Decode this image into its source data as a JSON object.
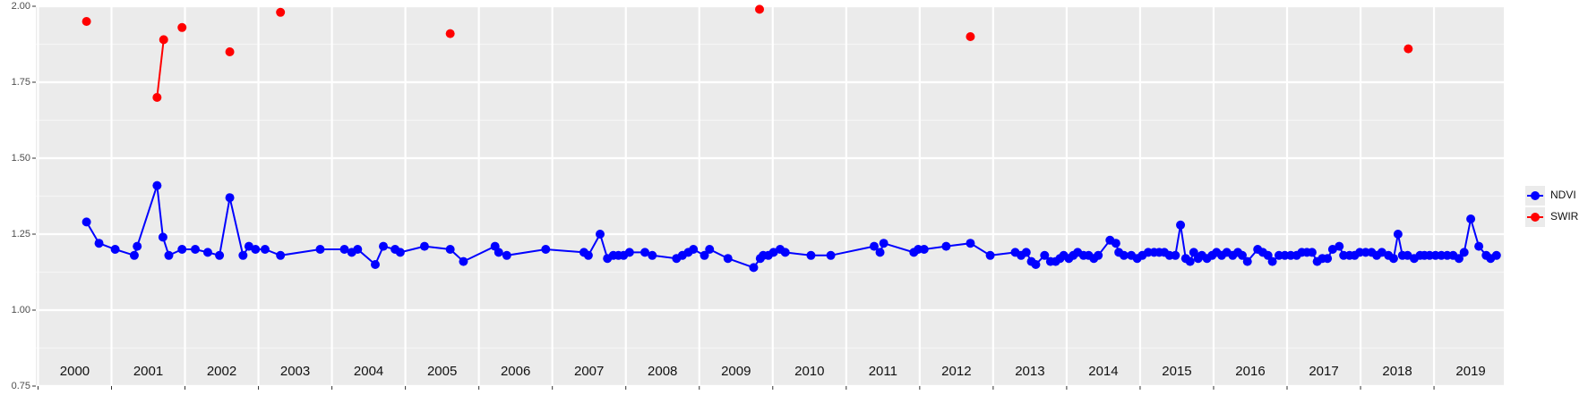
{
  "chart_data": {
    "type": "line",
    "xlim": [
      1999.97,
      2019.95
    ],
    "xticks": [
      2000,
      2001,
      2002,
      2003,
      2004,
      2005,
      2006,
      2007,
      2008,
      2009,
      2010,
      2011,
      2012,
      2013,
      2014,
      2015,
      2016,
      2017,
      2018,
      2019
    ],
    "ylim": [
      0.75,
      2.0
    ],
    "yticks": [
      {
        "value": 0.75,
        "label": "0.75"
      },
      {
        "value": 1.0,
        "label": "1.00"
      },
      {
        "value": 1.25,
        "label": "1.25"
      },
      {
        "value": 1.5,
        "label": "1.50"
      },
      {
        "value": 1.75,
        "label": "1.75"
      },
      {
        "value": 2.0,
        "label": "2.00"
      }
    ],
    "grid": true,
    "legend": "right",
    "annotations": [
      "2000",
      "2001",
      "2002",
      "2003",
      "2004",
      "2005",
      "2006",
      "2007",
      "2008",
      "2009",
      "2010",
      "2011",
      "2012",
      "2013",
      "2014",
      "2015",
      "2016",
      "2017",
      "2018",
      "2019"
    ],
    "series": [
      {
        "name": "NDVI",
        "color": "#0000ff",
        "x": [
          2000.66,
          2000.83,
          2001.05,
          2001.31,
          2001.35,
          2001.62,
          2001.7,
          2001.78,
          2001.96,
          2002.14,
          2002.31,
          2002.47,
          2002.61,
          2002.79,
          2002.87,
          2002.96,
          2003.09,
          2003.3,
          2003.84,
          2004.17,
          2004.27,
          2004.35,
          2004.59,
          2004.7,
          2004.86,
          2004.93,
          2005.26,
          2005.61,
          2005.79,
          2006.22,
          2006.27,
          2006.38,
          2006.91,
          2007.43,
          2007.49,
          2007.65,
          2007.75,
          2007.83,
          2007.9,
          2007.97,
          2008.05,
          2008.26,
          2008.36,
          2008.69,
          2008.77,
          2008.85,
          2008.92,
          2009.07,
          2009.14,
          2009.39,
          2009.74,
          2009.83,
          2009.87,
          2009.94,
          2010.01,
          2010.1,
          2010.17,
          2010.52,
          2010.79,
          2011.38,
          2011.46,
          2011.51,
          2011.92,
          2011.98,
          2012.06,
          2012.36,
          2012.69,
          2012.96,
          2013.3,
          2013.38,
          2013.45,
          2013.52,
          2013.58,
          2013.7,
          2013.78,
          2013.85,
          2013.91,
          2013.96,
          2014.03,
          2014.09,
          2014.15,
          2014.23,
          2014.3,
          2014.37,
          2014.43,
          2014.59,
          2014.67,
          2014.71,
          2014.78,
          2014.88,
          2014.96,
          2015.03,
          2015.11,
          2015.19,
          2015.26,
          2015.33,
          2015.4,
          2015.48,
          2015.55,
          2015.62,
          2015.68,
          2015.73,
          2015.79,
          2015.84,
          2015.91,
          2015.98,
          2016.04,
          2016.11,
          2016.18,
          2016.26,
          2016.33,
          2016.39,
          2016.46,
          2016.6,
          2016.67,
          2016.74,
          2016.8,
          2016.89,
          2016.97,
          2017.05,
          2017.13,
          2017.2,
          2017.27,
          2017.34,
          2017.41,
          2017.48,
          2017.55,
          2017.62,
          2017.71,
          2017.77,
          2017.85,
          2017.92,
          2017.99,
          2018.07,
          2018.15,
          2018.22,
          2018.29,
          2018.38,
          2018.45,
          2018.51,
          2018.57,
          2018.64,
          2018.73,
          2018.81,
          2018.87,
          2018.94,
          2019.02,
          2019.1,
          2019.18,
          2019.26,
          2019.34,
          2019.41,
          2019.5,
          2019.61,
          2019.71,
          2019.77,
          2019.85
        ],
        "values": [
          1.29,
          1.22,
          1.2,
          1.18,
          1.21,
          1.41,
          1.24,
          1.18,
          1.2,
          1.2,
          1.19,
          1.18,
          1.37,
          1.18,
          1.21,
          1.2,
          1.2,
          1.18,
          1.2,
          1.2,
          1.19,
          1.2,
          1.15,
          1.21,
          1.2,
          1.19,
          1.21,
          1.2,
          1.16,
          1.21,
          1.19,
          1.18,
          1.2,
          1.19,
          1.18,
          1.25,
          1.17,
          1.18,
          1.18,
          1.18,
          1.19,
          1.19,
          1.18,
          1.17,
          1.18,
          1.19,
          1.2,
          1.18,
          1.2,
          1.17,
          1.14,
          1.17,
          1.18,
          1.18,
          1.19,
          1.2,
          1.19,
          1.18,
          1.18,
          1.21,
          1.19,
          1.22,
          1.19,
          1.2,
          1.2,
          1.21,
          1.22,
          1.18,
          1.19,
          1.18,
          1.19,
          1.16,
          1.15,
          1.18,
          1.16,
          1.16,
          1.17,
          1.18,
          1.17,
          1.18,
          1.19,
          1.18,
          1.18,
          1.17,
          1.18,
          1.23,
          1.22,
          1.19,
          1.18,
          1.18,
          1.17,
          1.18,
          1.19,
          1.19,
          1.19,
          1.19,
          1.18,
          1.18,
          1.28,
          1.17,
          1.16,
          1.19,
          1.17,
          1.18,
          1.17,
          1.18,
          1.19,
          1.18,
          1.19,
          1.18,
          1.19,
          1.18,
          1.16,
          1.2,
          1.19,
          1.18,
          1.16,
          1.18,
          1.18,
          1.18,
          1.18,
          1.19,
          1.19,
          1.19,
          1.16,
          1.17,
          1.17,
          1.2,
          1.21,
          1.18,
          1.18,
          1.18,
          1.19,
          1.19,
          1.19,
          1.18,
          1.19,
          1.18,
          1.17,
          1.25,
          1.18,
          1.18,
          1.17,
          1.18,
          1.18,
          1.18,
          1.18,
          1.18,
          1.18,
          1.18,
          1.17,
          1.19,
          1.3,
          1.21,
          1.18,
          1.17,
          1.18
        ]
      },
      {
        "name": "SWIR",
        "color": "#ff0000",
        "x": [
          2000.66,
          null,
          2001.62,
          2001.71,
          null,
          2001.96,
          null,
          2002.61,
          null,
          2003.3,
          null,
          2005.61,
          null,
          2009.82,
          null,
          2012.69,
          null,
          2018.65
        ],
        "values": [
          1.95,
          null,
          1.7,
          1.89,
          null,
          1.93,
          null,
          1.85,
          null,
          1.98,
          null,
          1.91,
          null,
          1.99,
          null,
          1.9,
          null,
          1.86
        ]
      }
    ]
  }
}
